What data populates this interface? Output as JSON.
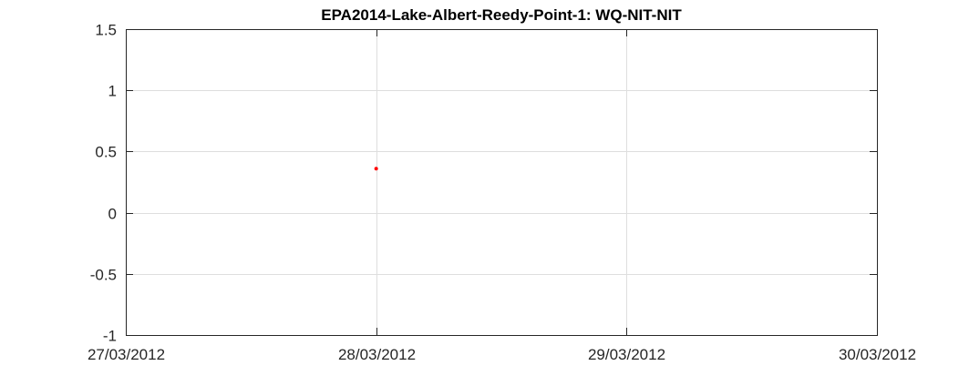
{
  "chart_data": {
    "type": "scatter",
    "title": "EPA2014-Lake-Albert-Reedy-Point-1: WQ-NIT-NIT",
    "xlabel": "",
    "ylabel": "",
    "x_axis_type": "date",
    "xlim": [
      "27/03/2012",
      "30/03/2012"
    ],
    "ylim": [
      -1,
      1.5
    ],
    "x_ticks": [
      "27/03/2012",
      "28/03/2012",
      "29/03/2012",
      "30/03/2012"
    ],
    "y_ticks": [
      "-1",
      "-0.5",
      "0",
      "0.5",
      "1",
      "1.5"
    ],
    "grid": true,
    "legend": "none",
    "series": [
      {
        "color": "#ff0000",
        "marker": "dot",
        "points": [
          {
            "x": "28/03/2012",
            "y": 0.36
          }
        ]
      }
    ]
  }
}
